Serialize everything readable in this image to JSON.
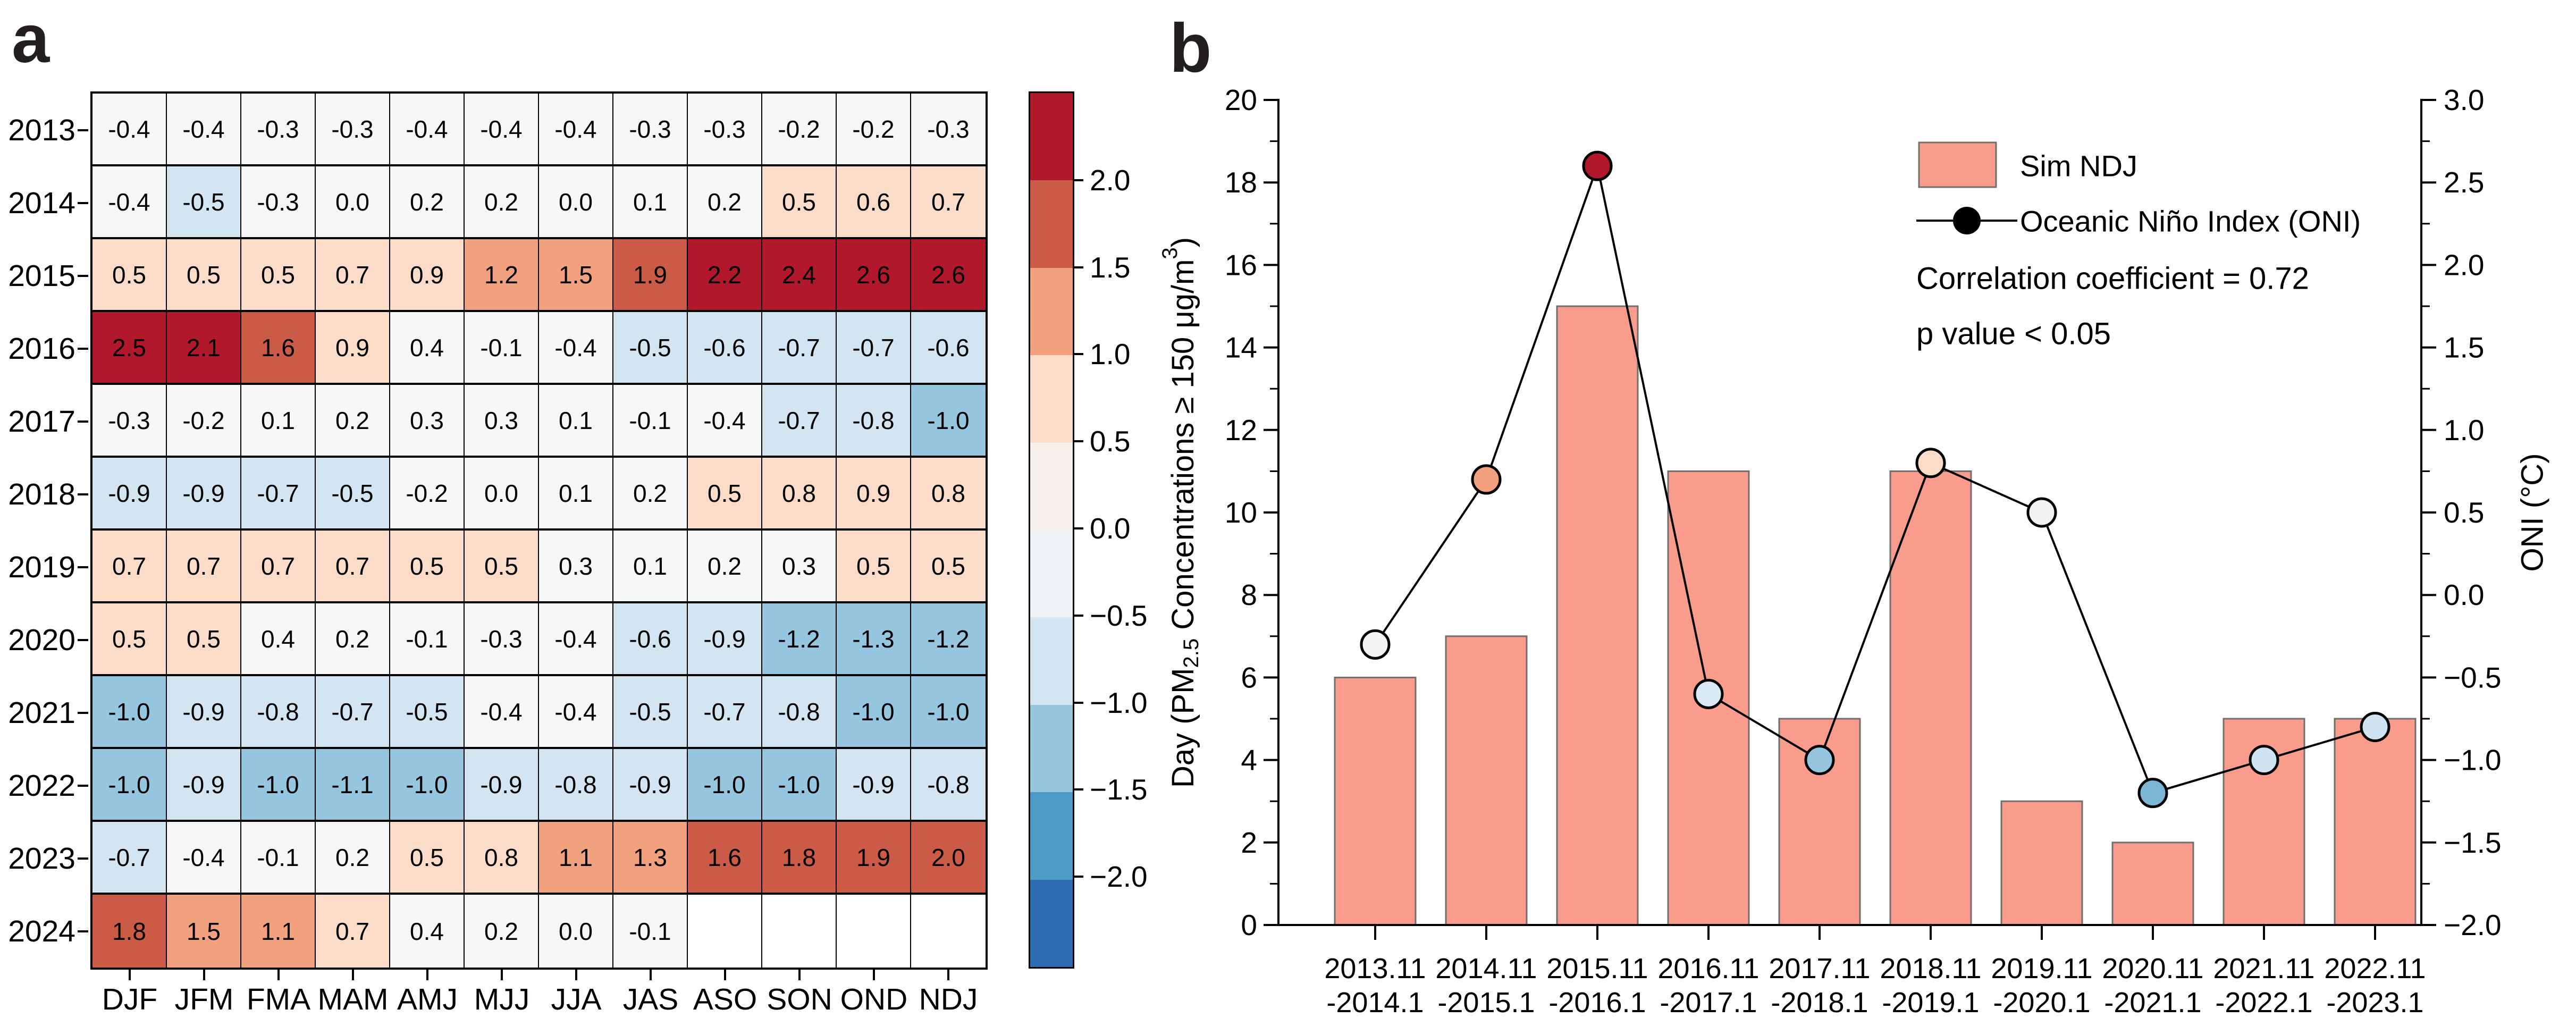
{
  "figure": {
    "background": "#ffffff"
  },
  "panel_a_letter": "a",
  "panel_b_letter": "b",
  "chart_data": [
    {
      "type": "heatmap",
      "panel": "a",
      "rows": [
        "2013",
        "2014",
        "2015",
        "2016",
        "2017",
        "2018",
        "2019",
        "2020",
        "2021",
        "2022",
        "2023",
        "2024"
      ],
      "columns": [
        "DJF",
        "JFM",
        "FMA",
        "MAM",
        "AMJ",
        "MJJ",
        "JJA",
        "JAS",
        "ASO",
        "SON",
        "OND",
        "NDJ"
      ],
      "values": [
        [
          "-0.4",
          "-0.4",
          "-0.3",
          "-0.3",
          "-0.4",
          "-0.4",
          "-0.4",
          "-0.3",
          "-0.3",
          "-0.2",
          "-0.2",
          "-0.3"
        ],
        [
          "-0.4",
          "-0.5",
          "-0.3",
          "0.0",
          "0.2",
          "0.2",
          "0.0",
          "0.1",
          "0.2",
          "0.5",
          "0.6",
          "0.7"
        ],
        [
          "0.5",
          "0.5",
          "0.5",
          "0.7",
          "0.9",
          "1.2",
          "1.5",
          "1.9",
          "2.2",
          "2.4",
          "2.6",
          "2.6"
        ],
        [
          "2.5",
          "2.1",
          "1.6",
          "0.9",
          "0.4",
          "-0.1",
          "-0.4",
          "-0.5",
          "-0.6",
          "-0.7",
          "-0.7",
          "-0.6"
        ],
        [
          "-0.3",
          "-0.2",
          "0.1",
          "0.2",
          "0.3",
          "0.3",
          "0.1",
          "-0.1",
          "-0.4",
          "-0.7",
          "-0.8",
          "-1.0"
        ],
        [
          "-0.9",
          "-0.9",
          "-0.7",
          "-0.5",
          "-0.2",
          "0.0",
          "0.1",
          "0.2",
          "0.5",
          "0.8",
          "0.9",
          "0.8"
        ],
        [
          "0.7",
          "0.7",
          "0.7",
          "0.7",
          "0.5",
          "0.5",
          "0.3",
          "0.1",
          "0.2",
          "0.3",
          "0.5",
          "0.5"
        ],
        [
          "0.5",
          "0.5",
          "0.4",
          "0.2",
          "-0.1",
          "-0.3",
          "-0.4",
          "-0.6",
          "-0.9",
          "-1.2",
          "-1.3",
          "-1.2"
        ],
        [
          "-1.0",
          "-0.9",
          "-0.8",
          "-0.7",
          "-0.5",
          "-0.4",
          "-0.4",
          "-0.5",
          "-0.7",
          "-0.8",
          "-1.0",
          "-1.0"
        ],
        [
          "-1.0",
          "-0.9",
          "-1.0",
          "-1.1",
          "-1.0",
          "-0.9",
          "-0.8",
          "-0.9",
          "-1.0",
          "-1.0",
          "-0.9",
          "-0.8"
        ],
        [
          "-0.7",
          "-0.4",
          "-0.1",
          "0.2",
          "0.5",
          "0.8",
          "1.1",
          "1.3",
          "1.6",
          "1.8",
          "1.9",
          "2.0"
        ],
        [
          "1.8",
          "1.5",
          "1.1",
          "0.7",
          "0.4",
          "0.2",
          "0.0",
          "-0.1",
          null,
          null,
          null,
          null
        ]
      ],
      "value_range": [
        -2.5,
        2.5
      ],
      "palette": {
        "thresholds": [
          2.05,
          1.55,
          1.05,
          0.45,
          -0.45,
          -0.95,
          -1.45,
          -1.95
        ],
        "colors": [
          "#b2182b",
          "#cb5a47",
          "#f2a17e",
          "#fbdcc8",
          "#f6f7f7",
          "#d3e5f0",
          "#95c5df",
          "#4f9bc7",
          "#2e6db4"
        ],
        "empty": "#ffffff"
      },
      "colorbar": {
        "bands": [
          "#b2182b",
          "#cb5a47",
          "#f2a17e",
          "#fbdcc8",
          "#f7f0ea",
          "#eef2f4",
          "#d3e5f0",
          "#95c5df",
          "#4f9bc7",
          "#2e6db4"
        ],
        "tick_labels": [
          "2.0",
          "1.5",
          "1.0",
          "0.5",
          "0.0",
          "−0.5",
          "−1.0",
          "−1.5",
          "−2.0"
        ]
      }
    },
    {
      "type": "bar+line",
      "panel": "b",
      "x_labels_line1": [
        "2013.11",
        "2014.11",
        "2015.11",
        "2016.11",
        "2017.11",
        "2018.11",
        "2019.11",
        "2020.11",
        "2021.11",
        "2022.11"
      ],
      "x_labels_line2": [
        "-2014.1",
        "-2015.1",
        "-2016.1",
        "-2017.1",
        "-2018.1",
        "-2019.1",
        "-2020.1",
        "-2021.1",
        "-2022.1",
        "-2023.1"
      ],
      "bars": {
        "label": "Sim NDJ",
        "values": [
          6,
          7,
          15,
          11,
          5,
          11,
          3,
          2,
          5,
          5
        ],
        "fill": "#f99c8c",
        "edge": "#6f6f6f"
      },
      "line": {
        "label": "Oceanic Niño Index (ONI)",
        "values": [
          -0.3,
          0.7,
          2.6,
          -0.6,
          -1.0,
          0.8,
          0.5,
          -1.2,
          -1.0,
          -0.8
        ],
        "color": "#000000",
        "point_fills": [
          "#f5f5f5",
          "#f2a17e",
          "#b2182b",
          "#d9eaf4",
          "#95c5df",
          "#fbdcc8",
          "#f2f2f1",
          "#7cb6d7",
          "#cfe3f0",
          "#cfe3f0"
        ]
      },
      "axes": {
        "left": {
          "label_parts": {
            "pre": "Day (PM",
            "sub": "2.5",
            "mid": " Concentrations ≥ 150 μg/m",
            "sup": "3",
            "post": ")"
          },
          "tick_labels": [
            "0",
            "2",
            "4",
            "6",
            "8",
            "10",
            "12",
            "14",
            "16",
            "18",
            "20"
          ],
          "lim": [
            0,
            20
          ],
          "major_step": 2,
          "minor_step": 1
        },
        "right": {
          "label": "ONI (°C)",
          "tick_labels": [
            "−2.0",
            "−1.5",
            "−1.0",
            "−0.5",
            "0.0",
            "0.5",
            "1.0",
            "1.5",
            "2.0",
            "2.5",
            "3.0"
          ],
          "lim": [
            -2.0,
            3.0
          ],
          "major_step": 0.5,
          "minor_step": 0.25
        }
      },
      "annotations": {
        "corr": "Correlation coefficient = 0.72",
        "pval": "p value < 0.05"
      }
    }
  ]
}
